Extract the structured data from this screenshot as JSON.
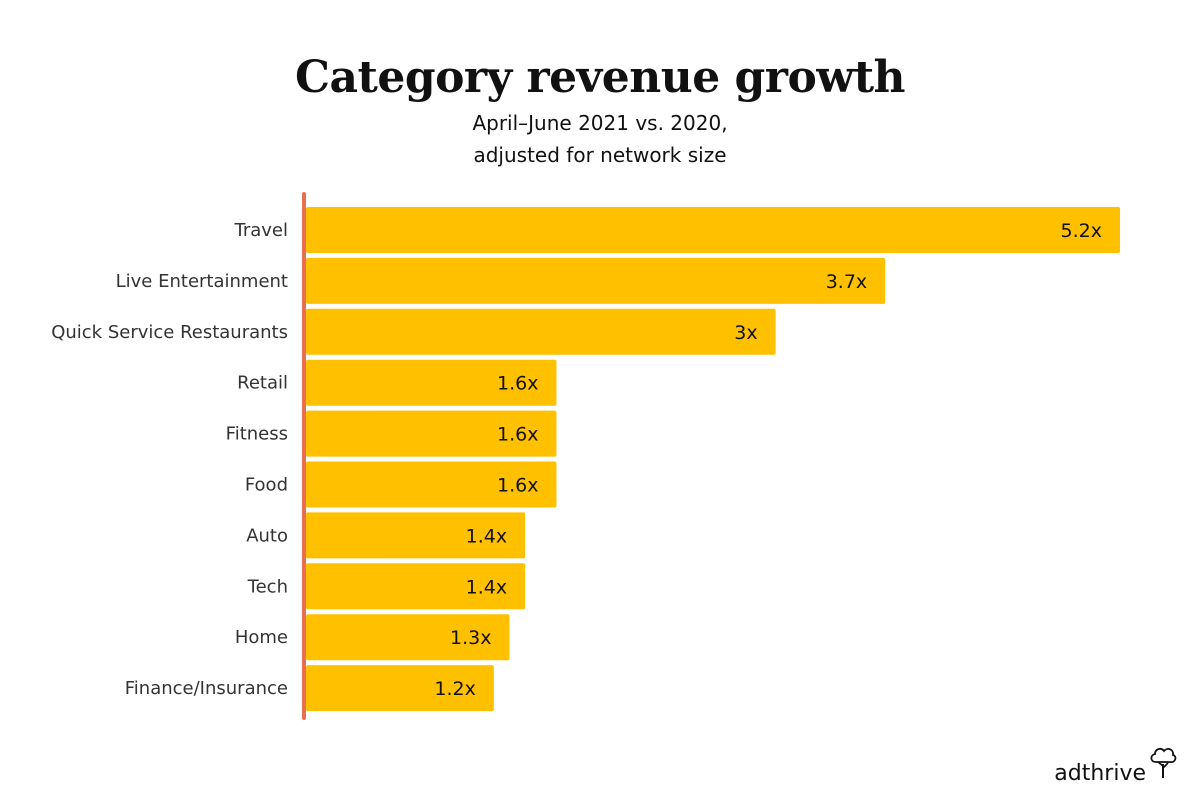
{
  "chart_data": {
    "type": "bar",
    "orientation": "horizontal",
    "title": "Category revenue growth",
    "subtitle_lines": [
      "April–June 2021 vs. 2020,",
      "adjusted for network size"
    ],
    "categories": [
      "Travel",
      "Live Entertainment",
      "Quick Service Restaurants",
      "Retail",
      "Fitness",
      "Food",
      "Auto",
      "Tech",
      "Home",
      "Finance/Insurance"
    ],
    "values": [
      5.2,
      3.7,
      3,
      1.6,
      1.6,
      1.6,
      1.4,
      1.4,
      1.3,
      1.2
    ],
    "value_labels": [
      "5.2x",
      "3.7x",
      "3x",
      "1.6x",
      "1.6x",
      "1.6x",
      "1.4x",
      "1.4x",
      "1.3x",
      "1.2x"
    ],
    "xlim": [
      0,
      5.2
    ],
    "xlabel": "",
    "ylabel": "",
    "grid": false,
    "bar_color": "#FFC000",
    "axis_color": "#E8704F"
  },
  "brand": {
    "logo_text": "adthrive"
  }
}
